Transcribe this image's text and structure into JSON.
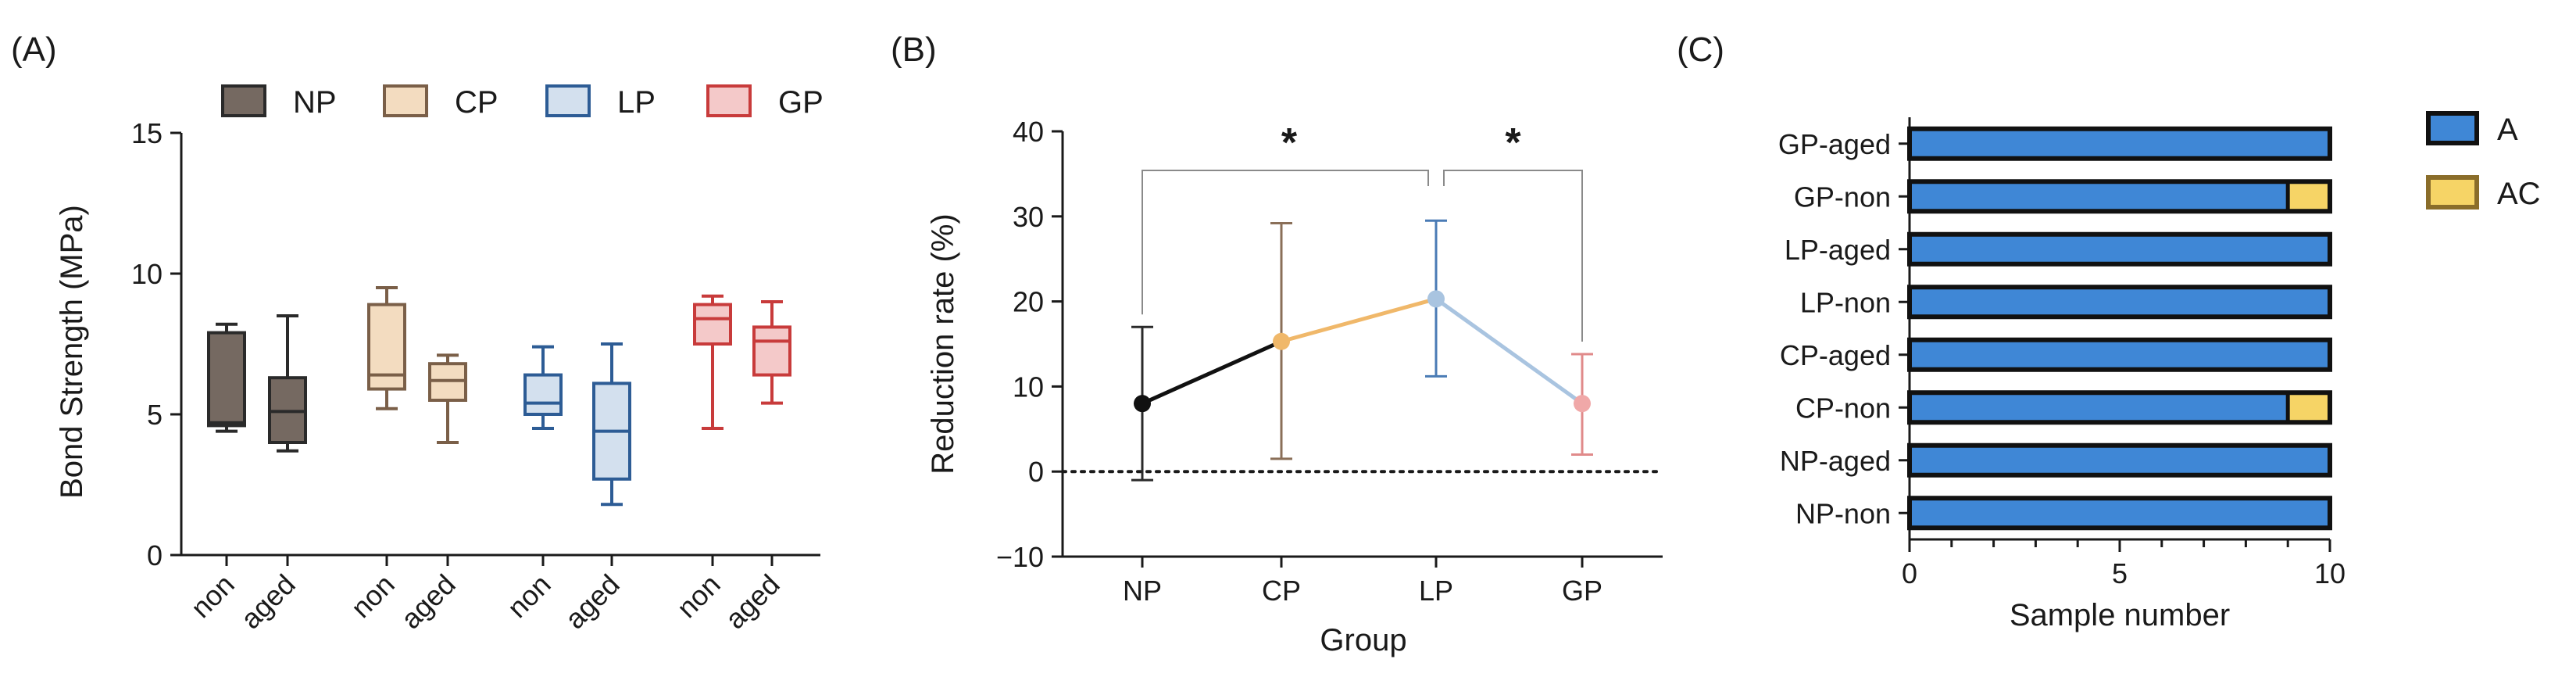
{
  "chart_data": [
    {
      "panel": "(A)",
      "type": "box",
      "ylabel": "Bond Strength (MPa)",
      "ylim": [
        0,
        15
      ],
      "yticks": [
        0,
        5,
        10,
        15
      ],
      "groups": [
        {
          "name": "NP",
          "fill": "#756961",
          "stroke": "#2a2a2a"
        },
        {
          "name": "CP",
          "fill": "#f3dcc0",
          "stroke": "#7a5f48"
        },
        {
          "name": "LP",
          "fill": "#d3e0ee",
          "stroke": "#2d5c95"
        },
        {
          "name": "GP",
          "fill": "#f4c9c9",
          "stroke": "#c83b3b"
        }
      ],
      "conditions": [
        "non",
        "aged"
      ],
      "boxes": [
        {
          "group": "NP",
          "condition": "non",
          "min": 4.4,
          "q1": 4.6,
          "median": 4.7,
          "q3": 7.9,
          "max": 8.2
        },
        {
          "group": "NP",
          "condition": "aged",
          "min": 3.7,
          "q1": 4.0,
          "median": 5.1,
          "q3": 6.3,
          "max": 8.5
        },
        {
          "group": "CP",
          "condition": "non",
          "min": 5.2,
          "q1": 5.9,
          "median": 6.4,
          "q3": 8.9,
          "max": 9.5
        },
        {
          "group": "CP",
          "condition": "aged",
          "min": 4.0,
          "q1": 5.5,
          "median": 6.2,
          "q3": 6.8,
          "max": 7.1
        },
        {
          "group": "LP",
          "condition": "non",
          "min": 4.5,
          "q1": 5.0,
          "median": 5.4,
          "q3": 6.4,
          "max": 7.4
        },
        {
          "group": "LP",
          "condition": "aged",
          "min": 1.8,
          "q1": 2.7,
          "median": 4.4,
          "q3": 6.1,
          "max": 7.5
        },
        {
          "group": "GP",
          "condition": "non",
          "min": 4.5,
          "q1": 7.5,
          "median": 8.4,
          "q3": 8.9,
          "max": 9.2
        },
        {
          "group": "GP",
          "condition": "aged",
          "min": 5.4,
          "q1": 6.4,
          "median": 7.6,
          "q3": 8.1,
          "max": 9.0
        }
      ]
    },
    {
      "panel": "(B)",
      "type": "line",
      "xlabel": "Group",
      "ylabel": "Reduction rate (%)",
      "ylim": [
        -10,
        40
      ],
      "yticks": [
        -10,
        0,
        10,
        20,
        30,
        40
      ],
      "categories": [
        "NP",
        "CP",
        "LP",
        "GP"
      ],
      "points": [
        {
          "group": "NP",
          "mean": 8.0,
          "err_low": -1.0,
          "err_high": 17.0,
          "color": "#111111"
        },
        {
          "group": "CP",
          "mean": 15.3,
          "err_low": 1.5,
          "err_high": 29.2,
          "color": "#f0b86a"
        },
        {
          "group": "LP",
          "mean": 20.3,
          "err_low": 11.2,
          "err_high": 29.5,
          "color": "#a9c4e0"
        },
        {
          "group": "GP",
          "mean": 8.0,
          "err_low": 2.0,
          "err_high": 13.8,
          "color": "#f0a8a8"
        }
      ],
      "segment_colors": [
        "#111111",
        "#f0b86a",
        "#a9c4e0"
      ],
      "reference_line": 0,
      "significance": [
        {
          "from": "NP",
          "to": "LP",
          "label": "*"
        },
        {
          "from": "LP",
          "to": "GP",
          "label": "*"
        }
      ]
    },
    {
      "panel": "(C)",
      "type": "bar",
      "orientation": "horizontal",
      "stacked": true,
      "xlabel": "Sample number",
      "xlim": [
        0,
        10
      ],
      "xticks": [
        0,
        5,
        10
      ],
      "categories": [
        "GP-aged",
        "GP-non",
        "LP-aged",
        "LP-non",
        "CP-aged",
        "CP-non",
        "NP-aged",
        "NP-non"
      ],
      "series": [
        {
          "name": "A",
          "color": "#3f87d6",
          "values": [
            10,
            9,
            10,
            10,
            10,
            9,
            10,
            10
          ]
        },
        {
          "name": "AC",
          "color": "#f6d466",
          "values": [
            0,
            1,
            0,
            0,
            0,
            1,
            0,
            0
          ]
        }
      ]
    }
  ]
}
